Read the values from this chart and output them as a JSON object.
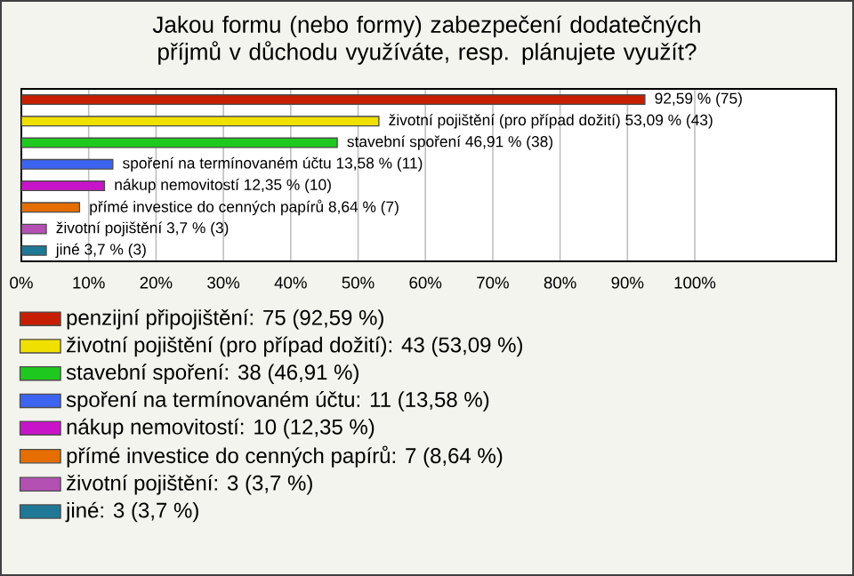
{
  "chart_data": {
    "type": "bar",
    "orientation": "horizontal",
    "title": "Jakou formu (nebo formy) zabezpečení dodatečných příjmů v důchodu využíváte, resp. plánujete využít?",
    "categories": [
      null,
      null,
      null,
      null,
      null,
      null,
      null,
      null
    ],
    "series": [
      {
        "name": "penzijní připojištění: 75 (92,59 %)",
        "color": "#c81e00",
        "values": [
          92.59,
          null,
          null,
          null,
          null,
          null,
          null,
          null
        ],
        "value_labels": [
          "92,59 % (75)",
          null,
          null,
          null,
          null,
          null,
          null,
          null
        ]
      },
      {
        "name": "životní pojištění (pro případ dožití): 43 (53,09 %)",
        "color": "#f0e000",
        "values": [
          null,
          53.09,
          null,
          null,
          null,
          null,
          null,
          null
        ],
        "value_labels": [
          null,
          "životní pojištění (pro případ dožití) 53,09 % (43)",
          null,
          null,
          null,
          null,
          null,
          null
        ]
      },
      {
        "name": "stavební spoření: 38 (46,91 %)",
        "color": "#1ec81e",
        "values": [
          null,
          null,
          46.91,
          null,
          null,
          null,
          null,
          null
        ],
        "value_labels": [
          null,
          null,
          "stavební spoření 46,91 % (38)",
          null,
          null,
          null,
          null,
          null
        ]
      },
      {
        "name": "spoření na termínovaném účtu: 11 (13,58 %)",
        "color": "#3c64f0",
        "values": [
          null,
          null,
          null,
          13.58,
          null,
          null,
          null,
          null
        ],
        "value_labels": [
          null,
          null,
          null,
          "spoření na termínovaném účtu 13,58 % (11)",
          null,
          null,
          null,
          null
        ]
      },
      {
        "name": "nákup nemovitostí: 10 (12,35 %)",
        "color": "#c814c8",
        "values": [
          null,
          null,
          null,
          null,
          12.35,
          null,
          null,
          null
        ],
        "value_labels": [
          null,
          null,
          null,
          null,
          "nákup nemovitostí 12,35 % (10)",
          null,
          null,
          null
        ]
      },
      {
        "name": "přímé investice do cenných papírů: 7 (8,64 %)",
        "color": "#e66e00",
        "values": [
          null,
          null,
          null,
          null,
          null,
          8.64,
          null,
          null
        ],
        "value_labels": [
          null,
          null,
          null,
          null,
          null,
          "přímé investice do cenných papírů 8,64 % (7)",
          null,
          null
        ]
      },
      {
        "name": "životní pojištění: 3 (3,7 %)",
        "color": "#b450b4",
        "values": [
          null,
          null,
          null,
          null,
          null,
          null,
          3.7,
          null
        ],
        "value_labels": [
          null,
          null,
          null,
          null,
          null,
          null,
          "životní pojištění 3,7 % (3)",
          null
        ]
      },
      {
        "name": "jiné: 3 (3,7 %)",
        "color": "#1e7896",
        "values": [
          null,
          null,
          null,
          null,
          null,
          null,
          null,
          3.7
        ],
        "value_labels": [
          null,
          null,
          null,
          null,
          null,
          null,
          null,
          "jiné 3,7 % (3)"
        ]
      }
    ],
    "xlim": [
      0,
      121
    ],
    "xticks": [
      {
        "value": 0,
        "label": "0%"
      },
      {
        "value": 10,
        "label": "10%"
      },
      {
        "value": 20,
        "label": "20%"
      },
      {
        "value": 30,
        "label": "30%"
      },
      {
        "value": 40,
        "label": "40%"
      },
      {
        "value": 50,
        "label": "50%"
      },
      {
        "value": 60,
        "label": "60%"
      },
      {
        "value": 70,
        "label": "70%"
      },
      {
        "value": 80,
        "label": "80%"
      },
      {
        "value": 90,
        "label": "90%"
      },
      {
        "value": 100,
        "label": "100%"
      }
    ],
    "grid": "x",
    "legend": "bottom"
  }
}
